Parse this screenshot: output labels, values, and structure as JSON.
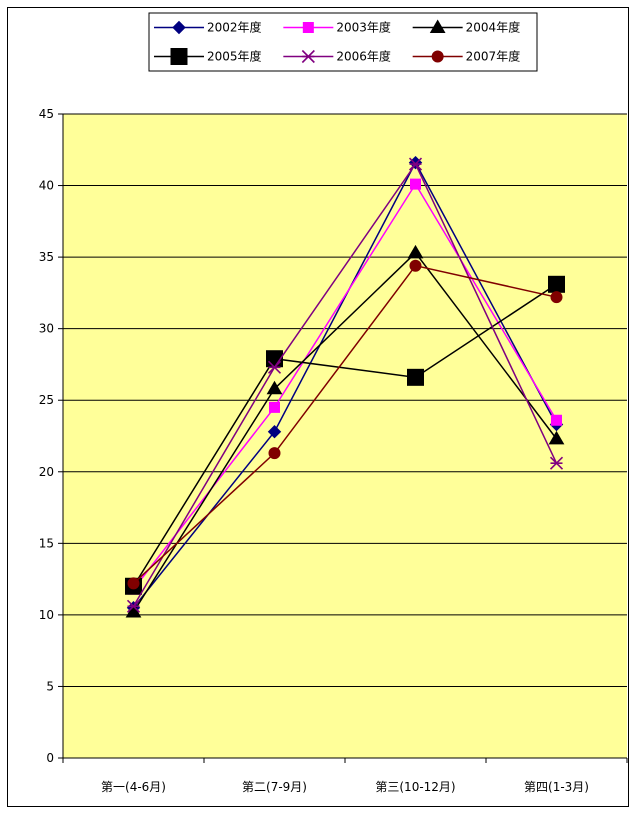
{
  "chart_data": {
    "type": "line",
    "title": "",
    "xlabel": "",
    "ylabel": "",
    "categories": [
      "第一(4-6月)",
      "第二(7-9月)",
      "第三(10-12月)",
      "第四(1-3月)"
    ],
    "ylim": [
      0,
      45
    ],
    "yticks": [
      "0",
      "5",
      "10",
      "15",
      "20",
      "25",
      "30",
      "35",
      "40",
      "45"
    ],
    "grid": true,
    "background_color": "#ffff99",
    "legend_position": "top",
    "series": [
      {
        "name": "2002年度",
        "values": [
          10.5,
          22.8,
          41.6,
          23.3
        ],
        "color": "#000080",
        "marker": "diamond"
      },
      {
        "name": "2003年度",
        "values": [
          11.8,
          24.5,
          40.1,
          23.6
        ],
        "color": "#ff00ff",
        "marker": "square-small"
      },
      {
        "name": "2004年度",
        "values": [
          10.2,
          25.8,
          35.3,
          22.3
        ],
        "color": "#000000",
        "marker": "triangle"
      },
      {
        "name": "2005年度",
        "values": [
          12.0,
          27.9,
          26.6,
          33.1
        ],
        "color": "#000000",
        "marker": "square-large"
      },
      {
        "name": "2006年度",
        "values": [
          10.6,
          27.3,
          41.5,
          20.6
        ],
        "color": "#800080",
        "marker": "asterisk"
      },
      {
        "name": "2007年度",
        "values": [
          12.2,
          21.3,
          34.4,
          32.2
        ],
        "color": "#800000",
        "marker": "circle"
      }
    ]
  }
}
